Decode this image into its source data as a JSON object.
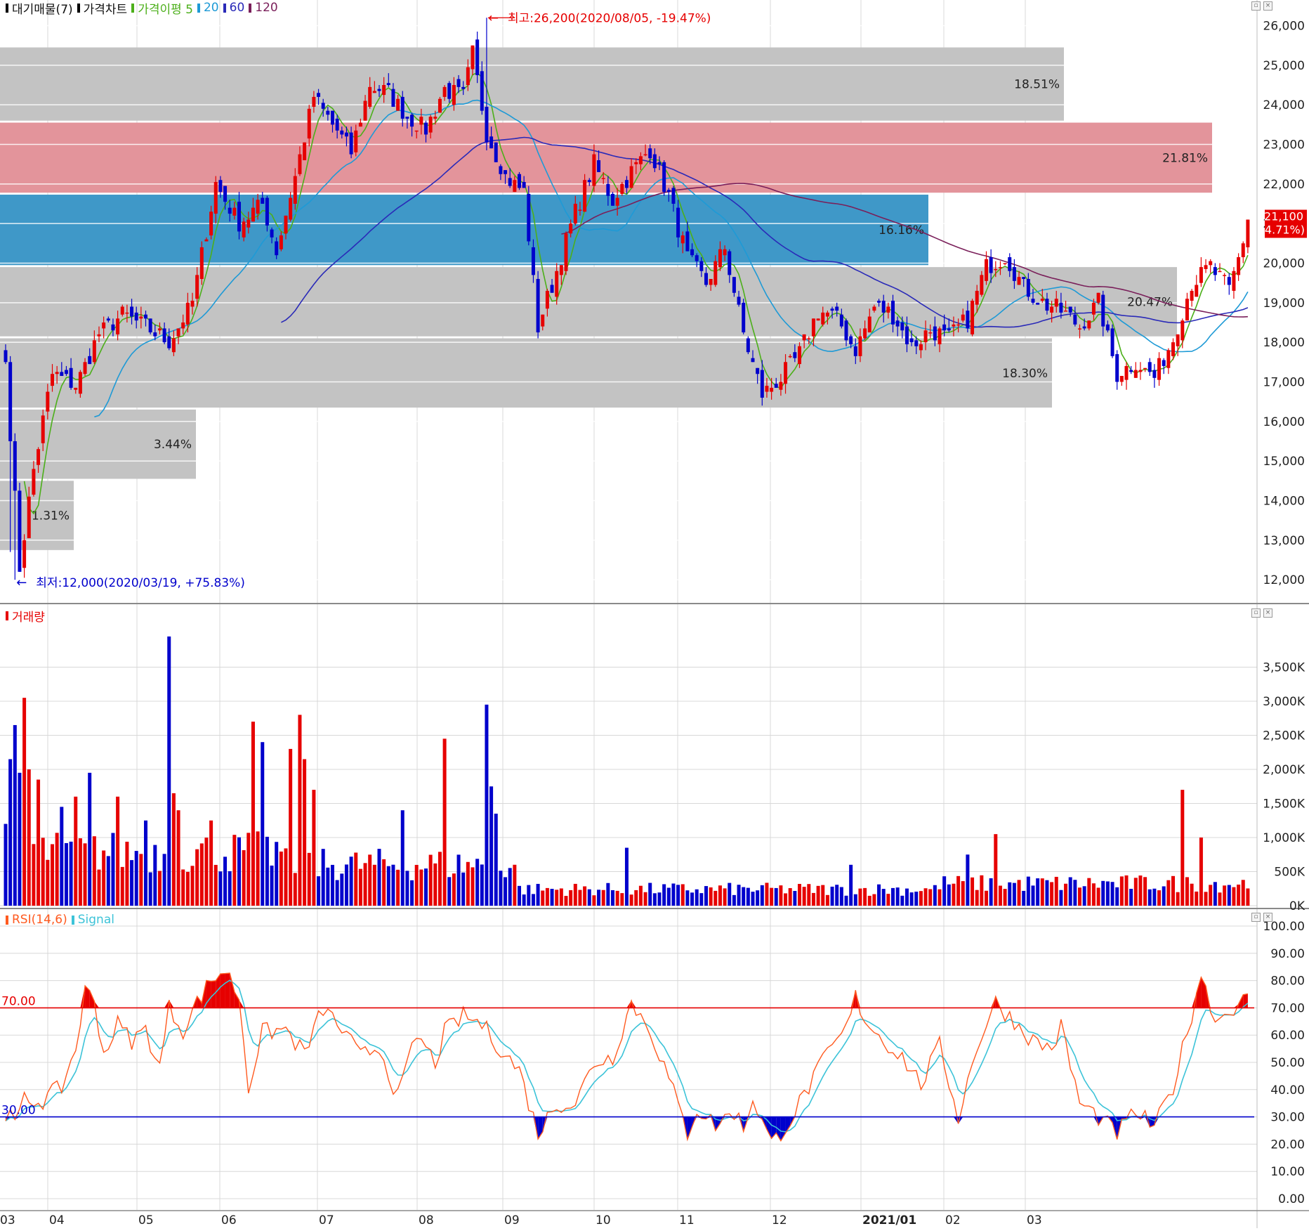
{
  "colors": {
    "up": "#e60000",
    "down": "#0000cc",
    "ma5": "#4caf1a",
    "ma20": "#1e9ad6",
    "ma60": "#2a2ab8",
    "ma120": "#7a1f5a",
    "rsi": "#ff5a1f",
    "signal": "#3cc3d8",
    "grid": "#d8d8d8",
    "zone_gray": "#c3c3c3",
    "zone_pink": "#e3949b",
    "zone_blue": "#3f98c8"
  },
  "price_panel": {
    "legend": [
      {
        "label": "대기매물(7)",
        "color": "#000000"
      },
      {
        "label": "가격차트",
        "color": "#000000"
      },
      {
        "label": "가격이평 5",
        "color": "#4caf1a"
      },
      {
        "label": "20",
        "color": "#1e9ad6"
      },
      {
        "label": "60",
        "color": "#2a2ab8"
      },
      {
        "label": "120",
        "color": "#7a1f5a"
      }
    ],
    "high_note": "최고:26,200(2020/08/05, -19.47%)",
    "low_note": "최저:12,000(2020/03/19, +75.83%)",
    "last_price": "21,100",
    "last_change": "(4.71%)"
  },
  "volume_panel": {
    "legend": [
      {
        "label": "거래량",
        "color": "#e60000"
      }
    ]
  },
  "rsi_panel": {
    "legend": [
      {
        "label": "RSI(14,6)",
        "color": "#ff5a1f"
      },
      {
        "label": "Signal",
        "color": "#3cc3d8"
      }
    ],
    "line70": "70.00",
    "line30": "30.00"
  },
  "x_axis": {
    "labels": [
      "03",
      "04",
      "05",
      "06",
      "07",
      "08",
      "09",
      "10",
      "11",
      "12",
      "2021/01",
      "02",
      "03"
    ]
  },
  "chart_data": [
    {
      "type": "candlestick",
      "title": "가격차트",
      "ylim": [
        11700,
        26400
      ],
      "y_ticks": [
        "26,000",
        "25,000",
        "24,000",
        "23,000",
        "22,000",
        "21,000",
        "20,000",
        "19,000",
        "18,000",
        "17,000",
        "16,000",
        "15,000",
        "14,000",
        "13,000",
        "12,000"
      ],
      "resistance_zones": [
        {
          "low": 23600,
          "high": 25450,
          "label": "18.51%"
        },
        {
          "low": 21780,
          "high": 23550,
          "label": "21.81%"
        },
        {
          "low": 19950,
          "high": 21730,
          "label": "16.16%"
        },
        {
          "low": 18150,
          "high": 19900,
          "label": "20.47%"
        },
        {
          "low": 16350,
          "high": 18100,
          "label": "18.30%"
        },
        {
          "low": 14550,
          "high": 16300,
          "label": "3.44%"
        },
        {
          "low": 12750,
          "high": 14500,
          "label": "1.31%"
        }
      ],
      "close_path": [
        [
          0,
          17500
        ],
        [
          3,
          12300
        ],
        [
          6,
          14800
        ],
        [
          10,
          17200
        ],
        [
          15,
          16900
        ],
        [
          20,
          18200
        ],
        [
          25,
          18700
        ],
        [
          30,
          18400
        ],
        [
          35,
          18000
        ],
        [
          40,
          19000
        ],
        [
          45,
          22000
        ],
        [
          50,
          21000
        ],
        [
          55,
          21500
        ],
        [
          58,
          20300
        ],
        [
          62,
          22200
        ],
        [
          66,
          24200
        ],
        [
          70,
          23500
        ],
        [
          74,
          22800
        ],
        [
          78,
          24500
        ],
        [
          82,
          24300
        ],
        [
          86,
          23700
        ],
        [
          90,
          23400
        ],
        [
          94,
          24400
        ],
        [
          98,
          24200
        ],
        [
          100,
          25300
        ],
        [
          103,
          23300
        ],
        [
          107,
          22200
        ],
        [
          111,
          21800
        ],
        [
          114,
          18400
        ],
        [
          118,
          19800
        ],
        [
          122,
          21300
        ],
        [
          126,
          22500
        ],
        [
          130,
          21600
        ],
        [
          134,
          22300
        ],
        [
          138,
          22900
        ],
        [
          142,
          21700
        ],
        [
          146,
          20100
        ],
        [
          150,
          19500
        ],
        [
          154,
          20400
        ],
        [
          158,
          18200
        ],
        [
          162,
          16700
        ],
        [
          166,
          17100
        ],
        [
          170,
          17700
        ],
        [
          174,
          18800
        ],
        [
          178,
          18600
        ],
        [
          182,
          17800
        ],
        [
          186,
          18900
        ],
        [
          190,
          18700
        ],
        [
          194,
          17900
        ],
        [
          198,
          18300
        ],
        [
          202,
          18100
        ],
        [
          206,
          18600
        ],
        [
          210,
          19900
        ],
        [
          214,
          20200
        ],
        [
          218,
          19400
        ],
        [
          222,
          19000
        ],
        [
          226,
          18800
        ],
        [
          230,
          18400
        ],
        [
          234,
          19000
        ],
        [
          238,
          17200
        ],
        [
          242,
          17500
        ],
        [
          246,
          17100
        ],
        [
          250,
          18100
        ],
        [
          254,
          19500
        ],
        [
          258,
          19900
        ],
        [
          262,
          19300
        ],
        [
          264,
          20100
        ],
        [
          266,
          21100
        ]
      ],
      "ma_periods": [
        5,
        20,
        60,
        120
      ]
    },
    {
      "type": "bar",
      "title": "거래량",
      "ylim": [
        0,
        4000
      ],
      "y_ticks": [
        "3,500K",
        "3,000K",
        "2,500K",
        "2,000K",
        "1,500K",
        "1,000K",
        "500K",
        "0K"
      ],
      "spikes": [
        [
          0,
          1200
        ],
        [
          1,
          2150
        ],
        [
          2,
          2650
        ],
        [
          3,
          1950
        ],
        [
          4,
          3050
        ],
        [
          5,
          2000
        ],
        [
          7,
          1850
        ],
        [
          12,
          1450
        ],
        [
          15,
          1600
        ],
        [
          18,
          1950
        ],
        [
          24,
          1600
        ],
        [
          30,
          1250
        ],
        [
          35,
          3950
        ],
        [
          36,
          1650
        ],
        [
          37,
          1400
        ],
        [
          44,
          1250
        ],
        [
          53,
          2700
        ],
        [
          55,
          2400
        ],
        [
          61,
          2300
        ],
        [
          63,
          2800
        ],
        [
          64,
          2150
        ],
        [
          66,
          1700
        ],
        [
          85,
          1400
        ],
        [
          94,
          2450
        ],
        [
          103,
          2950
        ],
        [
          104,
          1750
        ],
        [
          105,
          1350
        ],
        [
          133,
          850
        ],
        [
          181,
          600
        ],
        [
          206,
          750
        ],
        [
          212,
          1050
        ],
        [
          252,
          1700
        ],
        [
          256,
          1000
        ]
      ]
    },
    {
      "type": "line",
      "title": "RSI(14,6)",
      "ylim": [
        0,
        100
      ],
      "y_ticks": [
        "100.00",
        "90.00",
        "80.00",
        "70.00",
        "60.00",
        "50.00",
        "40.00",
        "30.00",
        "20.00",
        "10.00",
        "0.00"
      ],
      "series": [
        {
          "name": "RSI(14,6)",
          "path": [
            [
              0,
              32
            ],
            [
              2,
              27
            ],
            [
              4,
              36
            ],
            [
              8,
              36
            ],
            [
              12,
              41
            ],
            [
              15,
              55
            ],
            [
              17,
              76
            ],
            [
              19,
              73
            ],
            [
              21,
              53
            ],
            [
              24,
              64
            ],
            [
              27,
              58
            ],
            [
              30,
              62
            ],
            [
              33,
              48
            ],
            [
              35,
              70
            ],
            [
              38,
              62
            ],
            [
              41,
              72
            ],
            [
              44,
              80
            ],
            [
              47,
              84
            ],
            [
              50,
              74
            ],
            [
              52,
              41
            ],
            [
              55,
              61
            ],
            [
              60,
              62
            ],
            [
              64,
              53
            ],
            [
              68,
              70
            ],
            [
              72,
              62
            ],
            [
              76,
              52
            ],
            [
              80,
              56
            ],
            [
              84,
              37
            ],
            [
              88,
              60
            ],
            [
              92,
              50
            ],
            [
              94,
              61
            ],
            [
              98,
              67
            ],
            [
              102,
              64
            ],
            [
              106,
              55
            ],
            [
              110,
              47
            ],
            [
              114,
              24
            ],
            [
              118,
              35
            ],
            [
              122,
              35
            ],
            [
              126,
              50
            ],
            [
              130,
              52
            ],
            [
              134,
              72
            ],
            [
              138,
              62
            ],
            [
              142,
              44
            ],
            [
              146,
              24
            ],
            [
              148,
              33
            ],
            [
              152,
              27
            ],
            [
              156,
              32
            ],
            [
              158,
              26
            ],
            [
              160,
              37
            ],
            [
              164,
              20
            ],
            [
              168,
              29
            ],
            [
              172,
              41
            ],
            [
              176,
              53
            ],
            [
              180,
              62
            ],
            [
              182,
              74
            ],
            [
              184,
              66
            ],
            [
              188,
              58
            ],
            [
              192,
              52
            ],
            [
              196,
              42
            ],
            [
              200,
              56
            ],
            [
              204,
              30
            ],
            [
              208,
              56
            ],
            [
              212,
              72
            ],
            [
              216,
              65
            ],
            [
              220,
              58
            ],
            [
              224,
              55
            ],
            [
              226,
              63
            ],
            [
              230,
              35
            ],
            [
              234,
              30
            ],
            [
              238,
              24
            ],
            [
              242,
              32
            ],
            [
              246,
              26
            ],
            [
              250,
              41
            ],
            [
              254,
              68
            ],
            [
              256,
              83
            ],
            [
              258,
              70
            ],
            [
              260,
              66
            ],
            [
              264,
              72
            ],
            [
              266,
              73
            ]
          ]
        },
        {
          "name": "Signal",
          "path": "ema6"
        }
      ],
      "reference_lines": [
        70,
        30
      ]
    }
  ]
}
